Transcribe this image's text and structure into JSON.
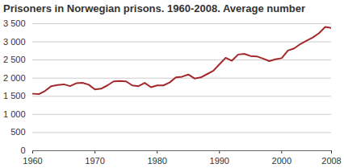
{
  "chart_data": {
    "type": "line",
    "title": "Prisoners in Norwegian prisons. 1960-2008. Average number",
    "x": [
      1960,
      1961,
      1962,
      1963,
      1964,
      1965,
      1966,
      1967,
      1968,
      1969,
      1970,
      1971,
      1972,
      1973,
      1974,
      1975,
      1976,
      1977,
      1978,
      1979,
      1980,
      1981,
      1982,
      1983,
      1984,
      1985,
      1986,
      1987,
      1988,
      1989,
      1990,
      1991,
      1992,
      1993,
      1994,
      1995,
      1996,
      1997,
      1998,
      1999,
      2000,
      2001,
      2002,
      2003,
      2004,
      2005,
      2006,
      2007,
      2008
    ],
    "values": [
      1570,
      1560,
      1650,
      1780,
      1810,
      1830,
      1780,
      1860,
      1870,
      1820,
      1690,
      1710,
      1800,
      1910,
      1920,
      1910,
      1800,
      1780,
      1870,
      1750,
      1800,
      1800,
      1880,
      2020,
      2040,
      2100,
      1990,
      2020,
      2110,
      2200,
      2380,
      2560,
      2480,
      2650,
      2670,
      2610,
      2600,
      2540,
      2470,
      2520,
      2550,
      2760,
      2820,
      2940,
      3030,
      3120,
      3240,
      3410,
      3380
    ],
    "color": "#a3282b",
    "xlim": [
      1960,
      2008
    ],
    "xticks": [
      1960,
      1970,
      1980,
      1990,
      2000,
      2008
    ],
    "ylim": [
      0,
      3500
    ],
    "yticks": [
      0,
      {
        "value": 500,
        "label": "500"
      },
      {
        "value": 1000,
        "label": "1 000"
      },
      {
        "value": 1500,
        "label": "1 500"
      },
      {
        "value": 2000,
        "label": "2 000"
      },
      {
        "value": 2500,
        "label": "2 500"
      },
      {
        "value": 3000,
        "label": "3 000"
      },
      {
        "value": 3500,
        "label": "3 500"
      }
    ],
    "grid": true
  }
}
